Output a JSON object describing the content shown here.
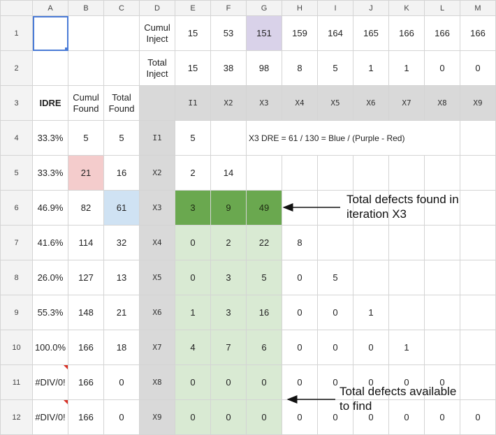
{
  "colors": {
    "header_bg": "#f3f3f3",
    "gray_cell": "#d9d9d9",
    "purple_cell": "#d9d2e9",
    "red_cell": "#f4cccc",
    "blue_cell": "#cfe2f3",
    "dark_green": "#6aa84f",
    "light_green": "#d9ead3",
    "selection": "#4a7bd6",
    "comment_marker": "#d93025"
  },
  "columns": [
    "A",
    "B",
    "C",
    "D",
    "E",
    "F",
    "G",
    "H",
    "I",
    "J",
    "K",
    "L",
    "M"
  ],
  "rows": [
    {
      "num": "1",
      "cells": [
        "",
        "",
        "",
        "Cumul Inject",
        "15",
        "53",
        "151",
        "159",
        "164",
        "165",
        "166",
        "166",
        "166"
      ]
    },
    {
      "num": "2",
      "cells": [
        "",
        "",
        "",
        "Total Inject",
        "15",
        "38",
        "98",
        "8",
        "5",
        "1",
        "1",
        "0",
        "0"
      ]
    },
    {
      "num": "3",
      "cells": [
        "IDRE",
        "Cumul Found",
        "Total Found",
        "",
        "I1",
        "X2",
        "X3",
        "X4",
        "X5",
        "X6",
        "X7",
        "X8",
        "X9"
      ]
    },
    {
      "num": "4",
      "cells": [
        "33.3%",
        "5",
        "5",
        "I1",
        "5",
        "",
        "X3 DRE = 61 / 130 = Blue / (Purple - Red)",
        "",
        "",
        "",
        "",
        "",
        ""
      ]
    },
    {
      "num": "5",
      "cells": [
        "33.3%",
        "21",
        "16",
        "X2",
        "2",
        "14",
        "",
        "",
        "",
        "",
        "",
        "",
        ""
      ]
    },
    {
      "num": "6",
      "cells": [
        "46.9%",
        "82",
        "61",
        "X3",
        "3",
        "9",
        "49",
        "",
        "",
        "",
        "",
        "",
        ""
      ]
    },
    {
      "num": "7",
      "cells": [
        "41.6%",
        "114",
        "32",
        "X4",
        "0",
        "2",
        "22",
        "8",
        "",
        "",
        "",
        "",
        ""
      ]
    },
    {
      "num": "8",
      "cells": [
        "26.0%",
        "127",
        "13",
        "X5",
        "0",
        "3",
        "5",
        "0",
        "5",
        "",
        "",
        "",
        ""
      ]
    },
    {
      "num": "9",
      "cells": [
        "55.3%",
        "148",
        "21",
        "X6",
        "1",
        "3",
        "16",
        "0",
        "0",
        "1",
        "",
        "",
        ""
      ]
    },
    {
      "num": "10",
      "cells": [
        "100.0%",
        "166",
        "18",
        "X7",
        "4",
        "7",
        "6",
        "0",
        "0",
        "0",
        "1",
        "",
        ""
      ]
    },
    {
      "num": "11",
      "cells": [
        "#DIV/0!",
        "166",
        "0",
        "X8",
        "0",
        "0",
        "0",
        "0",
        "0",
        "0",
        "0",
        "0",
        ""
      ]
    },
    {
      "num": "12",
      "cells": [
        "#DIV/0!",
        "166",
        "0",
        "X9",
        "0",
        "0",
        "0",
        "0",
        "0",
        "0",
        "0",
        "0",
        "0"
      ]
    }
  ],
  "annotations": {
    "x3_label_line1": "Total defects found in",
    "x3_label_line2": "iteration X3",
    "avail_label_line1": "Total defects available",
    "avail_label_line2": "to find"
  }
}
